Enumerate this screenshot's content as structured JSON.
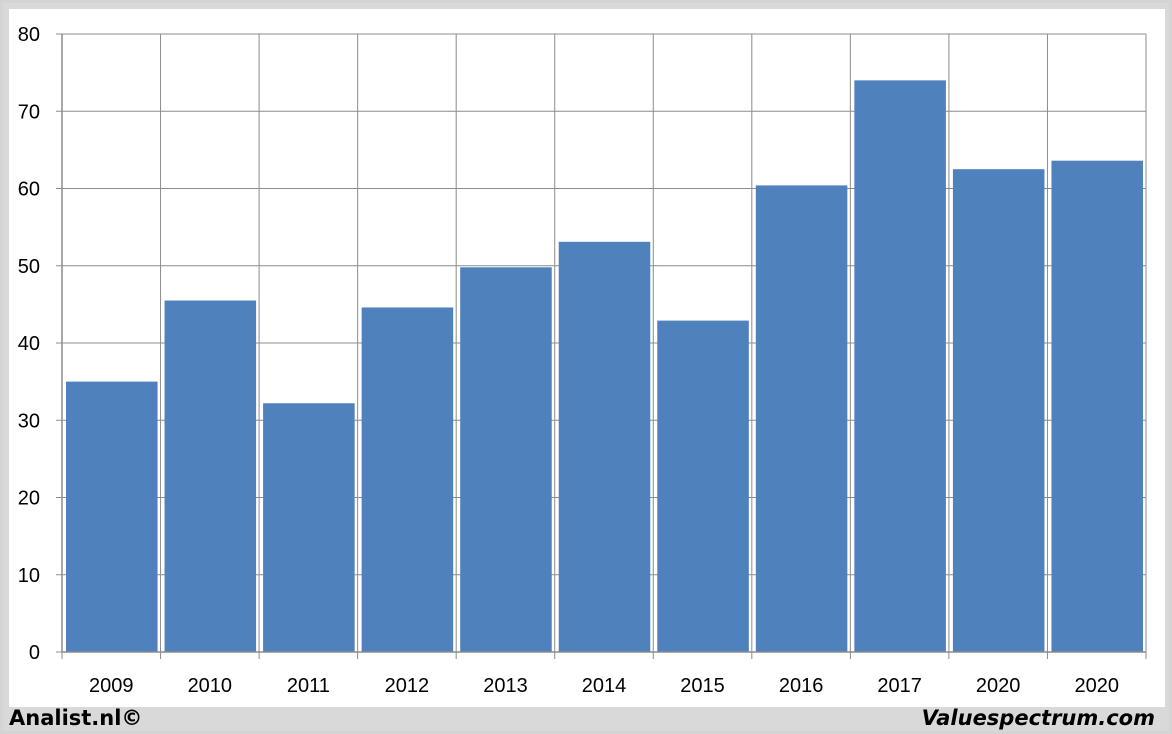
{
  "chart_data": {
    "type": "bar",
    "categories": [
      "2009",
      "2010",
      "2011",
      "2012",
      "2013",
      "2014",
      "2015",
      "2016",
      "2017",
      "2020",
      "2020"
    ],
    "values": [
      35.0,
      45.5,
      32.2,
      44.6,
      49.8,
      53.1,
      42.9,
      60.4,
      74.0,
      62.5,
      63.6
    ],
    "title": "",
    "xlabel": "",
    "ylabel": "",
    "ylim": [
      0,
      80
    ],
    "yticks": [
      "0",
      "10",
      "20",
      "30",
      "40",
      "50",
      "60",
      "70",
      "80"
    ],
    "grid": true,
    "bar_color": "#4f81bd",
    "grid_color": "#8c8c8c"
  },
  "footer": {
    "left": "Analist.nl©",
    "right": "Valuespectrum.com"
  }
}
